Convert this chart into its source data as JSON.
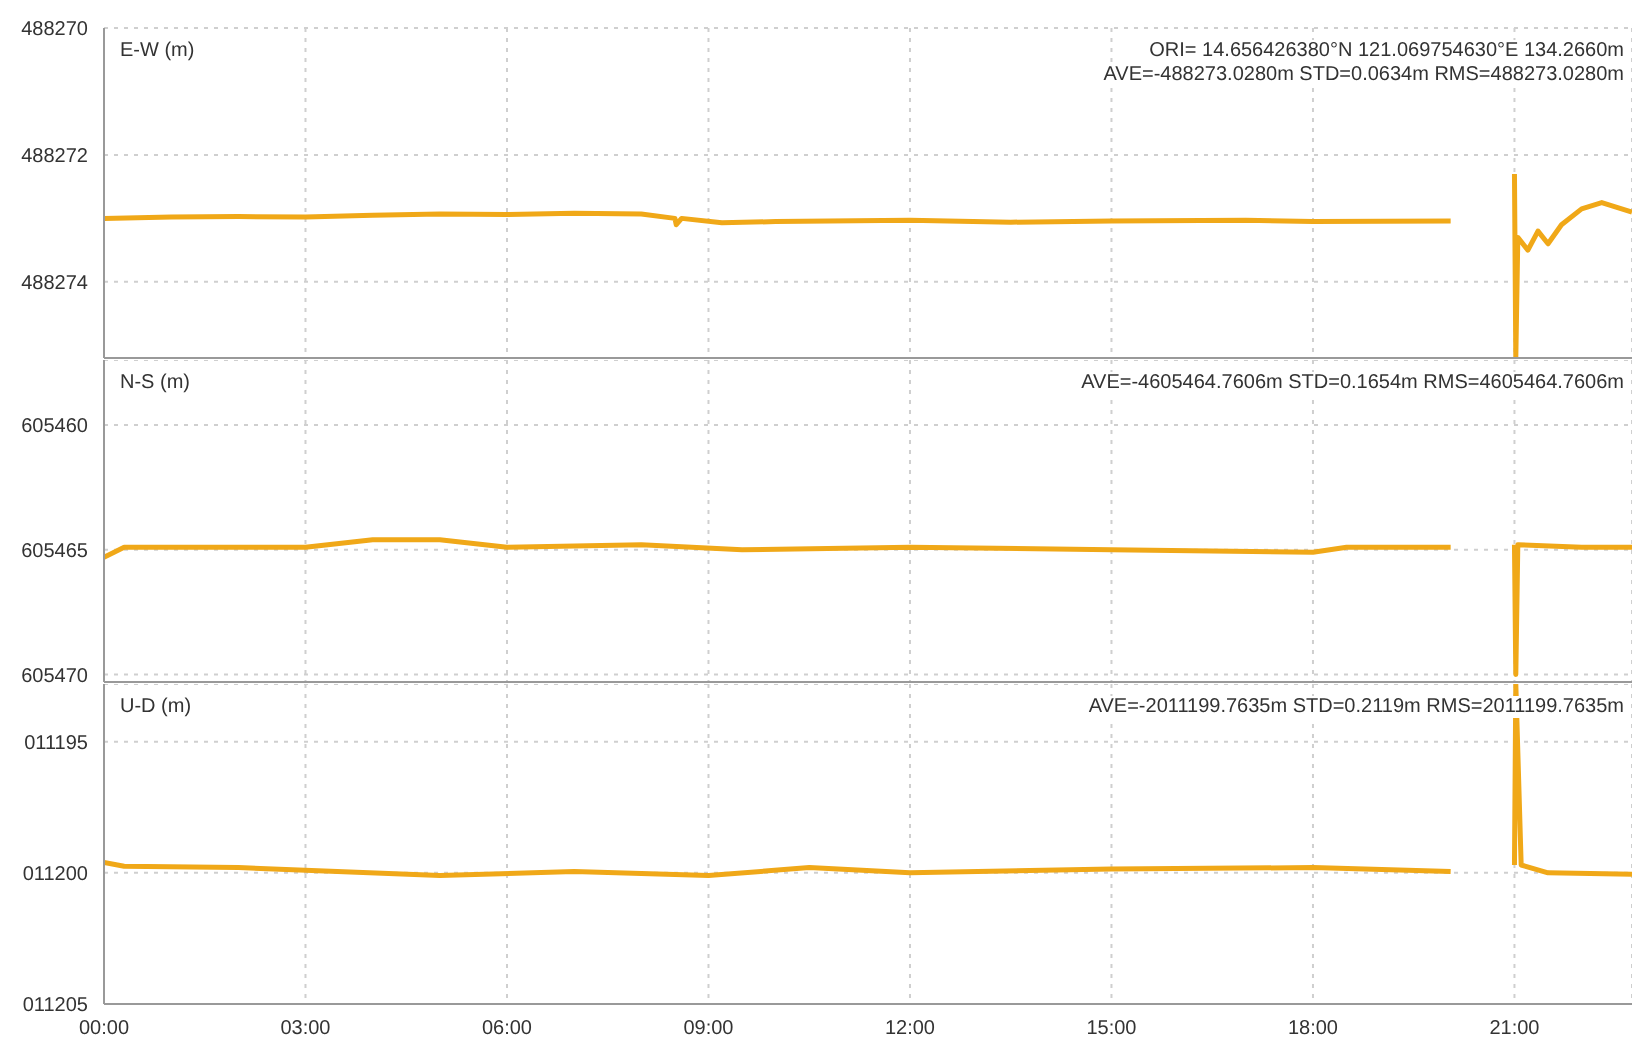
{
  "chart_data": [
    {
      "type": "line",
      "ylabel": "E-W (m)",
      "annotations": [
        "ORI= 14.656426380°N  121.069754630°E 134.2660m",
        "AVE=-488273.0280m STD=0.0634m RMS=488273.0280m"
      ],
      "x": [
        0,
        1,
        2,
        3,
        4,
        5,
        6,
        7,
        8,
        8.5,
        8.52,
        8.6,
        9.2,
        10,
        12,
        13.5,
        15,
        17,
        18,
        20.05,
        20.5,
        21.0,
        21.02,
        21.05,
        21.2,
        21.35,
        21.5,
        21.7,
        22.0,
        22.3,
        22.75
      ],
      "series": [
        {
          "color": "#f0a818",
          "values": [
            488273.0,
            488272.98,
            488272.97,
            488272.98,
            488272.95,
            488272.93,
            488272.94,
            488272.92,
            488272.93,
            488273.0,
            488273.1,
            488273.0,
            488273.07,
            488273.05,
            488273.03,
            488273.06,
            488273.04,
            488273.03,
            488273.05,
            488273.04,
            null,
            488272.3,
            488275.2,
            488273.3,
            488273.5,
            488273.2,
            488273.4,
            488273.1,
            488272.85,
            488272.75,
            488272.9
          ]
        }
      ],
      "xlim": [
        0,
        22.75
      ],
      "xticks": [
        {
          "value": 0,
          "label": null
        },
        {
          "value": 3,
          "label": null
        },
        {
          "value": 6,
          "label": null
        },
        {
          "value": 9,
          "label": null
        },
        {
          "value": 12,
          "label": null
        },
        {
          "value": 15,
          "label": null
        },
        {
          "value": 18,
          "label": null
        },
        {
          "value": 21,
          "label": null
        }
      ],
      "ylim": [
        488275.2,
        488270
      ],
      "yticks": [
        488270,
        488272,
        488274
      ],
      "grid": true,
      "tick_labels": "y"
    },
    {
      "type": "line",
      "ylabel": "N-S (m)",
      "annotations": [
        "AVE=-4605464.7606m STD=0.1654m RMS=4605464.7606m"
      ],
      "x": [
        0,
        0.3,
        3,
        4,
        5,
        6,
        8,
        9.5,
        12,
        15,
        18,
        18.5,
        20.05,
        20.5,
        21.0,
        21.02,
        21.05,
        22,
        22.75
      ],
      "series": [
        {
          "color": "#f0a818",
          "values": [
            605465.3,
            605464.9,
            605464.9,
            605464.6,
            605464.6,
            605464.9,
            605464.8,
            605465.0,
            605464.9,
            605465.0,
            605465.1,
            605464.9,
            605464.9,
            null,
            605464.8,
            605470,
            605464.8,
            605464.9,
            605464.9
          ]
        }
      ],
      "xlim": [
        0,
        22.75
      ],
      "xticks": [
        {
          "value": 0,
          "label": null
        },
        {
          "value": 3,
          "label": null
        },
        {
          "value": 6,
          "label": null
        },
        {
          "value": 9,
          "label": null
        },
        {
          "value": 12,
          "label": null
        },
        {
          "value": 15,
          "label": null
        },
        {
          "value": 18,
          "label": null
        },
        {
          "value": 21,
          "label": null
        }
      ],
      "ylim": [
        605470.3,
        605457.4
      ],
      "yticks": [
        605460,
        605465,
        605470
      ],
      "grid": true,
      "tick_labels": "y"
    },
    {
      "type": "line",
      "ylabel": "U-D (m)",
      "annotations": [
        "AVE=-2011199.7635m STD=0.2119m RMS=2011199.7635m"
      ],
      "x": [
        0,
        0.3,
        2,
        5,
        7,
        9,
        10.5,
        12,
        15,
        18,
        20.05,
        20.5,
        21.0,
        21.02,
        21.1,
        21.5,
        22.75
      ],
      "series": [
        {
          "color": "#f0a818",
          "values": [
            11199.6,
            11199.75,
            11199.8,
            11200.1,
            11199.95,
            11200.1,
            11199.8,
            11200.0,
            11199.85,
            11199.8,
            11199.95,
            null,
            11199.7,
            11192.8,
            11199.7,
            11200.0,
            11200.05
          ]
        }
      ],
      "xlim": [
        0,
        22.75
      ],
      "xticks": [
        {
          "value": 0,
          "label": "00:00"
        },
        {
          "value": 3,
          "label": "03:00"
        },
        {
          "value": 6,
          "label": "06:00"
        },
        {
          "value": 9,
          "label": "09:00"
        },
        {
          "value": 12,
          "label": "12:00"
        },
        {
          "value": 15,
          "label": "15:00"
        },
        {
          "value": 18,
          "label": "18:00"
        },
        {
          "value": 21,
          "label": "21:00"
        }
      ],
      "ylim": [
        11205,
        11192.8
      ],
      "yticks": [
        {
          "value": 11195,
          "label": "011195"
        },
        {
          "value": 11200,
          "label": "011200"
        },
        {
          "value": 11205,
          "label": "011205"
        }
      ],
      "grid": true
    }
  ]
}
